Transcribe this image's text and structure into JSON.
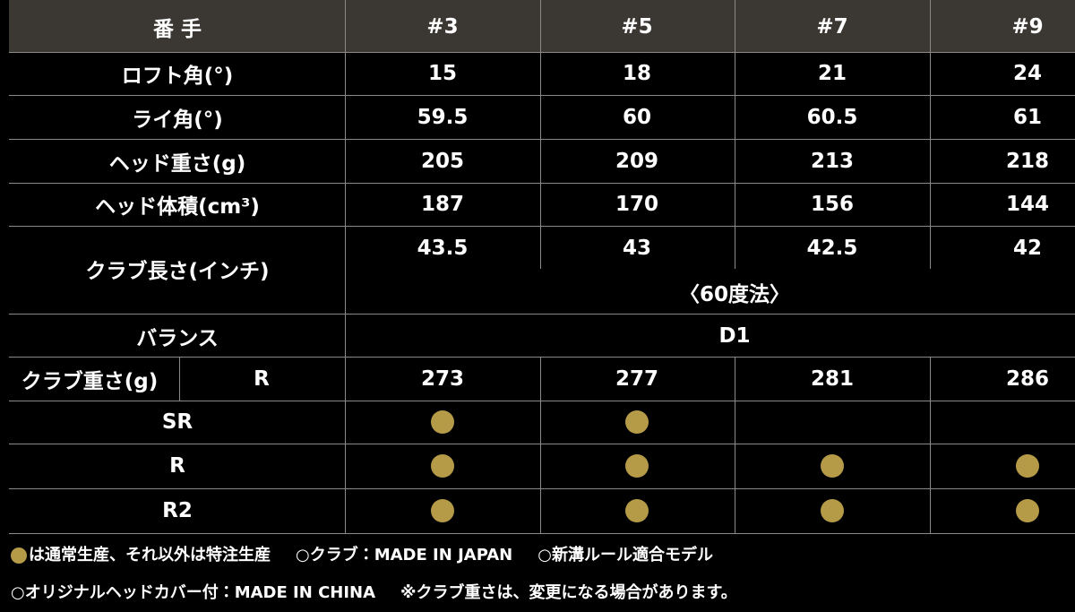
{
  "header": {
    "label": "番 手",
    "columns": [
      "#3",
      "#5",
      "#7",
      "#9"
    ]
  },
  "specs": [
    {
      "label": "ロフト角(°)",
      "values": [
        15,
        18,
        21,
        24
      ]
    },
    {
      "label": "ライ角(°)",
      "values": [
        59.5,
        60,
        60.5,
        61
      ]
    },
    {
      "label": "ヘッド重さ(g)",
      "values": [
        205,
        209,
        213,
        218
      ]
    },
    {
      "label": "ヘッド体積(cm³)",
      "values": [
        187,
        170,
        156,
        144
      ]
    }
  ],
  "club_length": {
    "label": "クラブ長さ(インチ)",
    "values": [
      43.5,
      43,
      42.5,
      42
    ],
    "note": "〈60度法〉"
  },
  "balance": {
    "label": "バランス",
    "value": "D1"
  },
  "club_weight": {
    "label": "クラブ重さ(g)",
    "flex": "R",
    "values": [
      273,
      277,
      281,
      286
    ]
  },
  "flex_rows": [
    {
      "label": "SR",
      "available": [
        true,
        true,
        false,
        false
      ]
    },
    {
      "label": "R",
      "available": [
        true,
        true,
        true,
        true
      ]
    },
    {
      "label": "R2",
      "available": [
        true,
        true,
        true,
        true
      ]
    }
  ],
  "notes": [
    [
      "は通常生産、それ以外は特注生産",
      "○クラブ：MADE IN JAPAN",
      "○新溝ルール適合モデル"
    ],
    [
      "○オリジナルヘッドカバー付：MADE IN CHINA",
      "※クラブ重さは、変更になる場合があります。"
    ]
  ]
}
